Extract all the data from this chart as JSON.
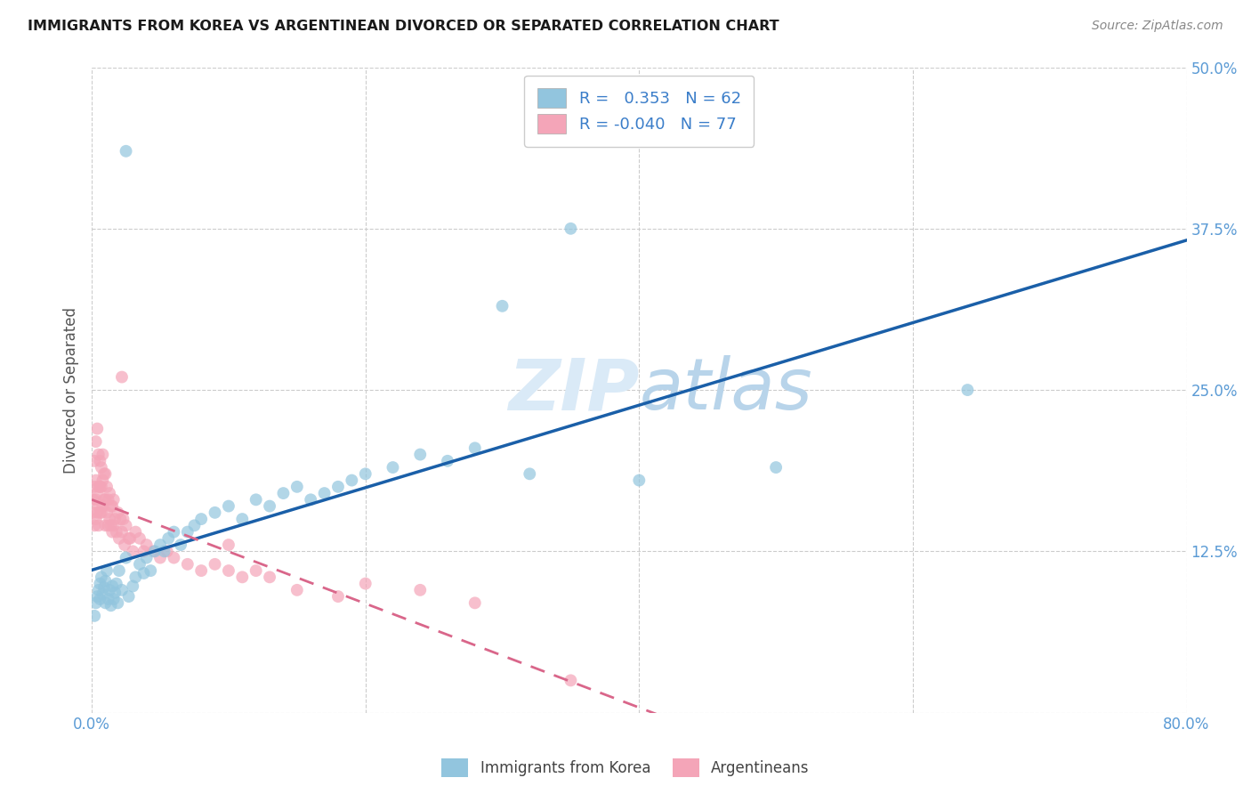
{
  "title": "IMMIGRANTS FROM KOREA VS ARGENTINEAN DIVORCED OR SEPARATED CORRELATION CHART",
  "source": "Source: ZipAtlas.com",
  "ylabel": "Divorced or Separated",
  "xlim": [
    0.0,
    0.8
  ],
  "ylim": [
    0.0,
    0.5
  ],
  "blue_color": "#92c5de",
  "pink_color": "#f4a5b8",
  "line_blue": "#1a5fa8",
  "line_pink": "#d9668a",
  "watermark_color": "#daeaf7",
  "korea_x": [
    0.025,
    0.002,
    0.003,
    0.004,
    0.005,
    0.006,
    0.006,
    0.007,
    0.008,
    0.009,
    0.01,
    0.01,
    0.011,
    0.012,
    0.013,
    0.014,
    0.015,
    0.016,
    0.017,
    0.018,
    0.019,
    0.02,
    0.022,
    0.025,
    0.027,
    0.03,
    0.032,
    0.035,
    0.038,
    0.04,
    0.043,
    0.046,
    0.05,
    0.053,
    0.056,
    0.06,
    0.065,
    0.07,
    0.075,
    0.08,
    0.09,
    0.1,
    0.11,
    0.12,
    0.13,
    0.14,
    0.15,
    0.16,
    0.17,
    0.18,
    0.19,
    0.2,
    0.22,
    0.24,
    0.26,
    0.28,
    0.3,
    0.32,
    0.35,
    0.4,
    0.5,
    0.64
  ],
  "korea_y": [
    0.435,
    0.075,
    0.085,
    0.09,
    0.095,
    0.1,
    0.088,
    0.105,
    0.092,
    0.097,
    0.102,
    0.085,
    0.11,
    0.088,
    0.095,
    0.083,
    0.098,
    0.088,
    0.093,
    0.1,
    0.085,
    0.11,
    0.095,
    0.12,
    0.09,
    0.098,
    0.105,
    0.115,
    0.108,
    0.12,
    0.11,
    0.125,
    0.13,
    0.125,
    0.135,
    0.14,
    0.13,
    0.14,
    0.145,
    0.15,
    0.155,
    0.16,
    0.15,
    0.165,
    0.16,
    0.17,
    0.175,
    0.165,
    0.17,
    0.175,
    0.18,
    0.185,
    0.19,
    0.2,
    0.195,
    0.205,
    0.315,
    0.185,
    0.375,
    0.18,
    0.19,
    0.25
  ],
  "argentina_x": [
    0.001,
    0.001,
    0.002,
    0.002,
    0.002,
    0.003,
    0.003,
    0.003,
    0.003,
    0.004,
    0.004,
    0.004,
    0.005,
    0.005,
    0.005,
    0.005,
    0.006,
    0.006,
    0.006,
    0.007,
    0.007,
    0.007,
    0.008,
    0.008,
    0.008,
    0.009,
    0.009,
    0.01,
    0.01,
    0.01,
    0.011,
    0.011,
    0.012,
    0.012,
    0.013,
    0.013,
    0.014,
    0.014,
    0.015,
    0.015,
    0.016,
    0.016,
    0.017,
    0.018,
    0.019,
    0.02,
    0.021,
    0.022,
    0.023,
    0.024,
    0.025,
    0.027,
    0.03,
    0.032,
    0.035,
    0.038,
    0.04,
    0.045,
    0.05,
    0.055,
    0.06,
    0.07,
    0.08,
    0.09,
    0.1,
    0.11,
    0.12,
    0.13,
    0.022,
    0.028,
    0.1,
    0.15,
    0.18,
    0.2,
    0.24,
    0.28,
    0.35
  ],
  "argentina_y": [
    0.155,
    0.165,
    0.145,
    0.175,
    0.195,
    0.15,
    0.165,
    0.18,
    0.21,
    0.155,
    0.17,
    0.22,
    0.145,
    0.16,
    0.175,
    0.2,
    0.155,
    0.175,
    0.195,
    0.155,
    0.175,
    0.19,
    0.16,
    0.18,
    0.2,
    0.165,
    0.185,
    0.145,
    0.165,
    0.185,
    0.155,
    0.175,
    0.145,
    0.165,
    0.15,
    0.17,
    0.145,
    0.16,
    0.14,
    0.16,
    0.145,
    0.165,
    0.15,
    0.14,
    0.155,
    0.135,
    0.15,
    0.14,
    0.15,
    0.13,
    0.145,
    0.135,
    0.125,
    0.14,
    0.135,
    0.125,
    0.13,
    0.125,
    0.12,
    0.125,
    0.12,
    0.115,
    0.11,
    0.115,
    0.11,
    0.105,
    0.11,
    0.105,
    0.26,
    0.135,
    0.13,
    0.095,
    0.09,
    0.1,
    0.095,
    0.085,
    0.025
  ]
}
